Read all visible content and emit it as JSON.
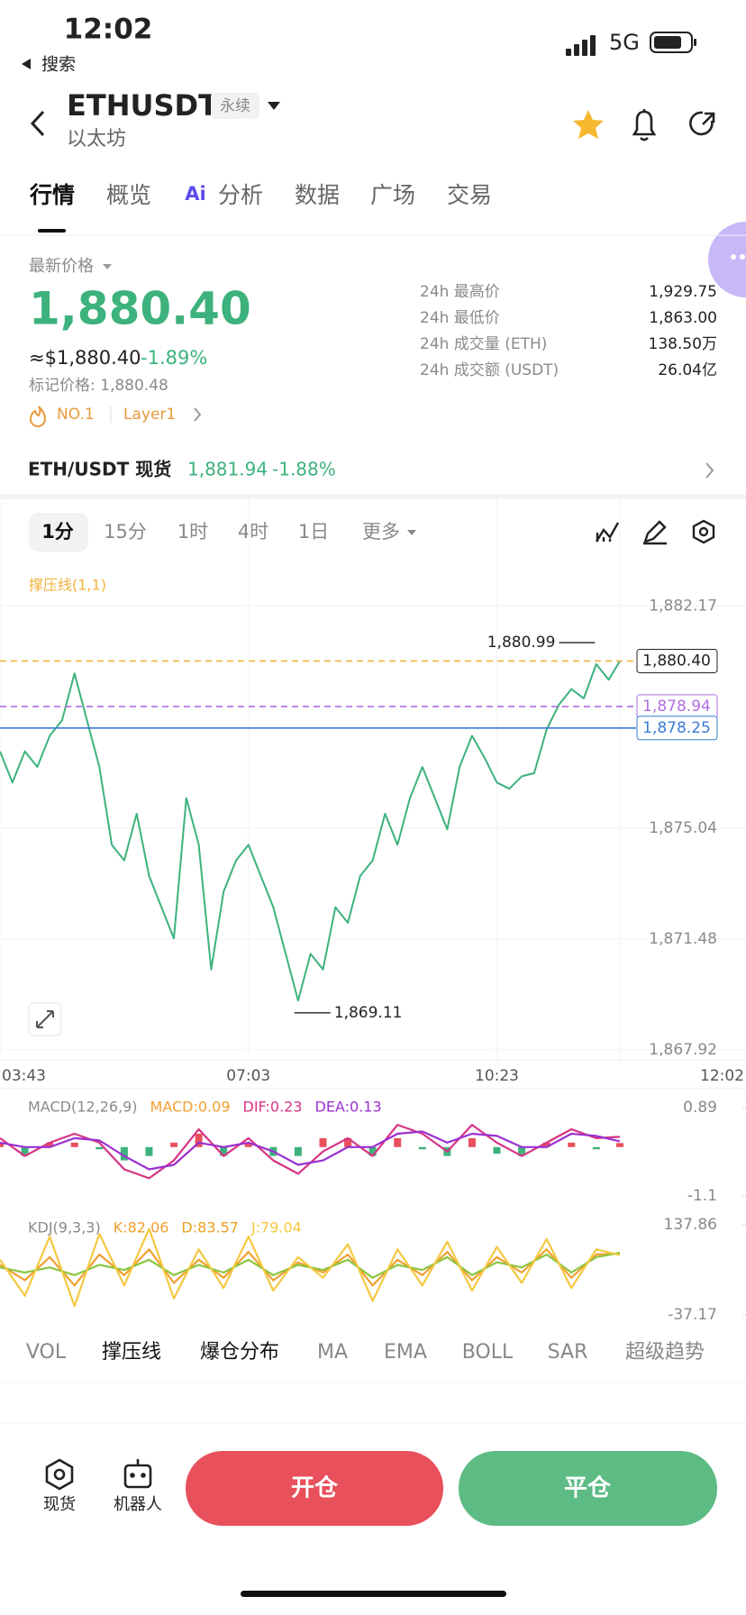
{
  "status_bar": {
    "time": "12:02",
    "back": "搜索",
    "network": "5G"
  },
  "header": {
    "symbol": "ETHUSDT",
    "tag": "永续",
    "name": "以太坊"
  },
  "tabs": {
    "items": [
      "行情",
      "概览",
      "分析",
      "数据",
      "广场",
      "交易"
    ],
    "ai_badge": "Ai",
    "active": 0
  },
  "price": {
    "label": "最新价格",
    "last": "1,880.40",
    "usd": "≈$1,880.40",
    "change": "-1.89%",
    "mark": "标记价格: 1,880.48",
    "rank": "NO.1",
    "sector": "Layer1"
  },
  "stats": [
    {
      "label": "24h 最高价",
      "value": "1,929.75"
    },
    {
      "label": "24h 最低价",
      "value": "1,863.00"
    },
    {
      "label": "24h 成交量 (ETH)",
      "value": "138.50万"
    },
    {
      "label": "24h 成交额 (USDT)",
      "value": "26.04亿"
    }
  ],
  "spot": {
    "pair": "ETH/USDT 现货",
    "price": "1,881.94",
    "change": "-1.88%"
  },
  "intervals": {
    "items": [
      "1分",
      "15分",
      "1时",
      "4时",
      "1日",
      "更多"
    ],
    "active": 0
  },
  "chart_data": [
    {
      "type": "line",
      "indicator": "撑压线(1,1)",
      "color": "#3db27c",
      "x": [
        0,
        10,
        20,
        30,
        40,
        50,
        60,
        70,
        80,
        90,
        100,
        110,
        120,
        130,
        140,
        150,
        160,
        170,
        180,
        190,
        200,
        210,
        220,
        230,
        240,
        250,
        260,
        270,
        280,
        290,
        300,
        310,
        320,
        330,
        340,
        350,
        360,
        370,
        380,
        390,
        400,
        410,
        420,
        430,
        440,
        450,
        460,
        470,
        480,
        490,
        499
      ],
      "values": [
        1877.5,
        1876.5,
        1877.5,
        1877,
        1878,
        1878.5,
        1880,
        1878.5,
        1877,
        1874.5,
        1874,
        1875.5,
        1873.5,
        1872.5,
        1871.5,
        1876,
        1874.5,
        1870.5,
        1873,
        1874,
        1874.5,
        1873.5,
        1872.5,
        1871,
        1869.5,
        1871,
        1870.5,
        1872.5,
        1872,
        1873.5,
        1874,
        1875.5,
        1874.5,
        1876,
        1877,
        1876,
        1875,
        1877,
        1878,
        1877.3,
        1876.5,
        1876.3,
        1876.7,
        1876.8,
        1878.2,
        1879,
        1879.5,
        1879.2,
        1880.3,
        1879.8,
        1880.4
      ],
      "xlim": [
        0,
        499
      ],
      "xticks": [
        {
          "value": 0,
          "label": "03:43"
        },
        {
          "value": 200,
          "label": "07:03"
        },
        {
          "value": 400,
          "label": "10:23"
        },
        {
          "value": 499,
          "label": "12:02"
        }
      ],
      "ylim": [
        1867.6,
        1883.45
      ],
      "yticks": [
        {
          "value": 1882.17,
          "label": "1,882.17"
        },
        {
          "value": 1875.04,
          "label": "1,875.04"
        },
        {
          "value": 1871.48,
          "label": "1,871.48"
        },
        {
          "value": 1867.92,
          "label": "1,867.92"
        }
      ],
      "grid": true,
      "price_lines": [
        {
          "value": 1880.4,
          "label": "1,880.40",
          "color": "#f0b43c",
          "text_color": "#222222",
          "dashed": true
        },
        {
          "value": 1878.94,
          "label": "1,878.94",
          "color": "#b06ee0",
          "text_color": "#b06ee0",
          "dashed": true
        },
        {
          "value": 1878.25,
          "label": "1,878.25",
          "color": "#3a7bd5",
          "text_color": "#3a7bd5",
          "dashed": false
        }
      ],
      "annotations": [
        {
          "x": 479,
          "value": 1880.99,
          "label": "1,880.99",
          "side": "left"
        },
        {
          "x": 237,
          "value": 1869.11,
          "label": "1,869.11",
          "side": "right"
        }
      ]
    },
    {
      "type": "macd",
      "title": "MACD(12,26,9)",
      "readouts": [
        {
          "label": "MACD:0.09",
          "color": "#f0a030"
        },
        {
          "label": "DIF:0.23",
          "color": "#d63384"
        },
        {
          "label": "DEA:0.13",
          "color": "#9b30d0"
        }
      ],
      "x": [
        0,
        20,
        40,
        60,
        80,
        100,
        120,
        140,
        160,
        180,
        200,
        220,
        240,
        260,
        280,
        300,
        320,
        340,
        360,
        380,
        400,
        420,
        440,
        460,
        480,
        499
      ],
      "series": [
        {
          "kind": "bar",
          "values": [
            0.1,
            -0.2,
            0.1,
            0.1,
            -0.05,
            -0.3,
            -0.2,
            0.1,
            0.3,
            -0.2,
            0.1,
            -0.2,
            -0.2,
            0.2,
            0.2,
            -0.2,
            0.2,
            -0.05,
            -0.2,
            0.2,
            -0.15,
            -0.2,
            0.1,
            0.1,
            -0.05,
            0.09
          ]
        },
        {
          "kind": "line",
          "color": "#d63384",
          "values": [
            0.2,
            -0.2,
            0.1,
            0.3,
            0.1,
            -0.5,
            -0.7,
            -0.3,
            0.4,
            -0.2,
            0.2,
            -0.3,
            -0.6,
            -0.1,
            0.2,
            -0.2,
            0.5,
            0.3,
            -0.1,
            0.5,
            0.1,
            -0.2,
            0.1,
            0.4,
            0.2,
            0.23
          ]
        },
        {
          "kind": "line",
          "color": "#9b30d0",
          "values": [
            0.1,
            0,
            0,
            0.2,
            0.15,
            -0.2,
            -0.5,
            -0.4,
            0.1,
            0,
            0.1,
            -0.1,
            -0.4,
            -0.3,
            0,
            0,
            0.3,
            0.35,
            0.1,
            0.3,
            0.25,
            0,
            0,
            0.3,
            0.25,
            0.13
          ]
        }
      ],
      "up_color": "#e8505b",
      "down_color": "#3db27c",
      "xlim": [
        0,
        499
      ],
      "ylim": [
        -1.28,
        1.15
      ],
      "yticks": [
        0.89,
        -1.1
      ]
    },
    {
      "type": "kdj",
      "title": "KDJ(9,3,3)",
      "readouts": [
        {
          "label": "K:82.06",
          "color": "#f0a030"
        },
        {
          "label": "D:83.57",
          "color": "#e8a020"
        },
        {
          "label": "J:79.04",
          "color": "#f5c842"
        }
      ],
      "x": [
        0,
        20,
        40,
        60,
        80,
        100,
        120,
        140,
        160,
        180,
        200,
        220,
        240,
        260,
        280,
        300,
        320,
        340,
        360,
        380,
        400,
        420,
        440,
        460,
        480,
        499
      ],
      "series": [
        {
          "kind": "line",
          "color": "#f0a030",
          "values": [
            60,
            30,
            75,
            20,
            80,
            40,
            90,
            25,
            70,
            35,
            85,
            30,
            65,
            45,
            80,
            20,
            70,
            40,
            85,
            30,
            75,
            45,
            90,
            35,
            80,
            82.06
          ]
        },
        {
          "kind": "line",
          "color": "#8cc63f",
          "values": [
            55,
            45,
            55,
            40,
            60,
            50,
            70,
            40,
            60,
            45,
            70,
            40,
            60,
            50,
            70,
            35,
            60,
            50,
            75,
            40,
            65,
            55,
            80,
            45,
            75,
            83.57
          ]
        },
        {
          "kind": "line",
          "color": "#f5c842",
          "values": [
            70,
            0,
            115,
            -20,
            120,
            20,
            130,
            -5,
            90,
            15,
            115,
            10,
            75,
            35,
            100,
            -10,
            90,
            20,
            105,
            10,
            95,
            25,
            110,
            15,
            90,
            79.04
          ]
        }
      ],
      "xlim": [
        0,
        499
      ],
      "ylim": [
        -47.7,
        153.6
      ],
      "yticks": [
        137.86,
        -37.17
      ]
    }
  ],
  "indicators": {
    "items": [
      "VOL",
      "撑压线",
      "爆仓分布",
      "MA",
      "EMA",
      "BOLL",
      "SAR",
      "超级趋势"
    ],
    "active": [
      1,
      2
    ]
  },
  "actions": {
    "spot": "现货",
    "bot": "机器人",
    "open": "开仓",
    "close": "平仓"
  }
}
